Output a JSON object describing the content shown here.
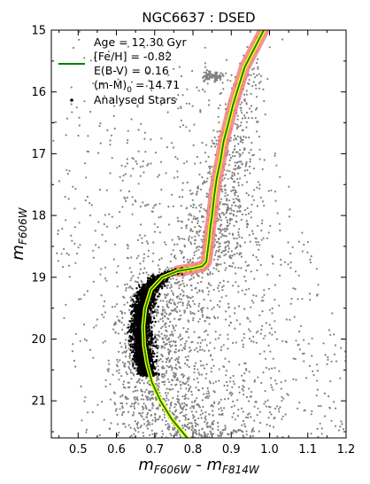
{
  "chart_data": {
    "type": "scatter",
    "title": "NGC6637 : DSED",
    "xlabel": {
      "main": "m",
      "sub1": "F606W",
      "sep": " - m",
      "sub2": "F814W"
    },
    "ylabel": {
      "main": "m",
      "sub": "F606W"
    },
    "xlim": [
      0.43,
      1.2
    ],
    "ylim": [
      21.6,
      15.0
    ],
    "y_inverted": true,
    "xticks": [
      0.5,
      0.6,
      0.7,
      0.8,
      0.9,
      1.0,
      1.1,
      1.2
    ],
    "xtick_labels": [
      "0.5",
      "0.6",
      "0.7",
      "0.8",
      "0.9",
      "1.0",
      "1.1",
      "1.2"
    ],
    "yticks": [
      15,
      16,
      17,
      18,
      19,
      20,
      21
    ],
    "ytick_labels": [
      "15",
      "16",
      "17",
      "18",
      "19",
      "20",
      "21"
    ],
    "grid": false,
    "legend_position": "top-left",
    "legend": {
      "age": "Age = 12.30 Gyr",
      "feh": "[Fe/H] = -0.82",
      "ebv": "E(B-V) = 0.16",
      "dm_prefix": "(m-M)",
      "dm_sub": "0",
      "dm_suffix": " = 14.71",
      "stars": "Analysed Stars"
    },
    "colors": {
      "isochrone_line": "#008000",
      "isochrone_outline": "#ffff00",
      "band": "#f08080",
      "field_stars": "#808080",
      "analysed_stars": "#000000"
    },
    "isochrone": {
      "color": [
        0.985,
        0.96,
        0.935,
        0.92,
        0.905,
        0.893,
        0.88,
        0.872,
        0.862,
        0.855,
        0.85,
        0.845,
        0.842,
        0.838,
        0.835,
        0.825,
        0.8,
        0.76,
        0.72,
        0.69,
        0.675,
        0.67,
        0.672,
        0.68,
        0.693,
        0.715,
        0.745,
        0.785,
        0.83,
        0.875,
        0.915
      ],
      "mag": [
        15.0,
        15.3,
        15.6,
        15.9,
        16.2,
        16.5,
        16.8,
        17.1,
        17.4,
        17.7,
        18.0,
        18.2,
        18.4,
        18.6,
        18.75,
        18.82,
        18.86,
        18.9,
        19.0,
        19.2,
        19.5,
        19.8,
        20.1,
        20.4,
        20.7,
        21.0,
        21.3,
        21.6,
        21.9,
        22.2,
        22.5
      ]
    },
    "rgb_band_mag_range": [
      15.0,
      18.9
    ],
    "red_clump": {
      "color": 0.85,
      "mag": 15.75
    }
  }
}
